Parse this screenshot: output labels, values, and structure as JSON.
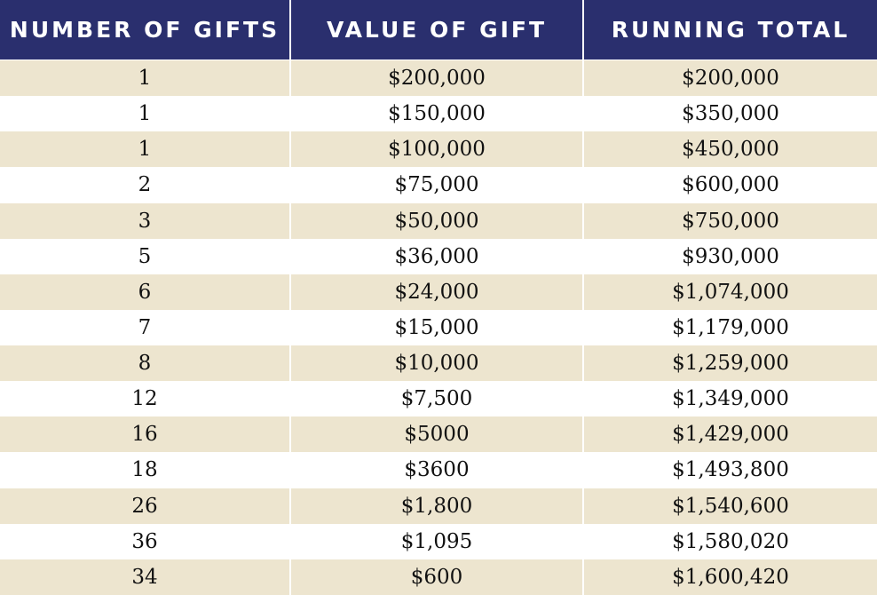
{
  "table": {
    "headers": [
      "NUMBER OF GIFTS",
      "VALUE OF GIFT",
      "RUNNING TOTAL"
    ],
    "rows": [
      {
        "count": "1",
        "value": "$200,000",
        "total": "$200,000"
      },
      {
        "count": "1",
        "value": "$150,000",
        "total": "$350,000"
      },
      {
        "count": "1",
        "value": "$100,000",
        "total": "$450,000"
      },
      {
        "count": "2",
        "value": "$75,000",
        "total": "$600,000"
      },
      {
        "count": "3",
        "value": "$50,000",
        "total": "$750,000"
      },
      {
        "count": "5",
        "value": "$36,000",
        "total": "$930,000"
      },
      {
        "count": "6",
        "value": "$24,000",
        "total": "$1,074,000"
      },
      {
        "count": "7",
        "value": "$15,000",
        "total": "$1,179,000"
      },
      {
        "count": "8",
        "value": "$10,000",
        "total": "$1,259,000"
      },
      {
        "count": "12",
        "value": "$7,500",
        "total": "$1,349,000"
      },
      {
        "count": "16",
        "value": "$5000",
        "total": "$1,429,000"
      },
      {
        "count": "18",
        "value": "$3600",
        "total": "$1,493,800"
      },
      {
        "count": "26",
        "value": "$1,800",
        "total": "$1,540,600"
      },
      {
        "count": "36",
        "value": "$1,095",
        "total": "$1,580,020"
      },
      {
        "count": "34",
        "value": "$600",
        "total": "$1,600,420"
      }
    ]
  },
  "colors": {
    "header_bg": "#2a2f6e",
    "header_text": "#ffffff",
    "row_alt_bg": "#ede5cf",
    "row_bg": "#ffffff",
    "cell_text": "#111111"
  }
}
